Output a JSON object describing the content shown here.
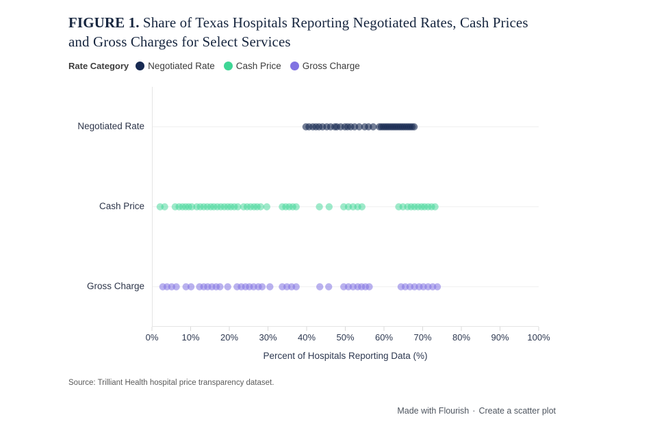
{
  "title": {
    "label": "FIGURE 1.",
    "text": " Share of Texas Hospitals Reporting Negotiated Rates, Cash Prices and Gross Charges for Select Services"
  },
  "legend": {
    "title": "Rate Category",
    "items": [
      {
        "label": "Negotiated Rate",
        "color": "#172a52"
      },
      {
        "label": "Cash Price",
        "color": "#3ed695"
      },
      {
        "label": "Gross Charge",
        "color": "#8173e2"
      }
    ]
  },
  "chart_data": {
    "type": "scatter",
    "orientation": "horizontal-strip",
    "title": "Share of Texas Hospitals Reporting Negotiated Rates, Cash Prices and Gross Charges for Select Services",
    "xlabel": "Percent of Hospitals Reporting Data (%)",
    "xlim": [
      0,
      100
    ],
    "x_ticks": [
      "0%",
      "10%",
      "20%",
      "30%",
      "40%",
      "50%",
      "60%",
      "70%",
      "80%",
      "90%",
      "100%"
    ],
    "grid": "horizontal-row-lines",
    "legend_position": "top",
    "categories": [
      "Negotiated Rate",
      "Cash Price",
      "Gross Charge"
    ],
    "series": [
      {
        "name": "Negotiated Rate",
        "color": "#172a52",
        "opacity": 0.6,
        "values": [
          39.8,
          40.6,
          41.6,
          42.4,
          43.2,
          44.1,
          45.2,
          46.2,
          47.3,
          47.8,
          48.8,
          49.9,
          50.6,
          51.4,
          52.4,
          53.6,
          55.0,
          56.0,
          57.2,
          58.8,
          59.3,
          59.8,
          60.3,
          60.8,
          61.3,
          61.8,
          62.3,
          62.8,
          63.3,
          63.8,
          64.3,
          64.8,
          65.3,
          65.8,
          66.3,
          66.8,
          67.3,
          67.8
        ]
      },
      {
        "name": "Cash Price",
        "color": "#3ed695",
        "opacity": 0.5,
        "values": [
          2.1,
          3.3,
          6.0,
          7.0,
          7.9,
          8.7,
          9.5,
          10.3,
          11.6,
          12.5,
          13.4,
          14.3,
          15.2,
          16.0,
          16.9,
          17.8,
          18.7,
          19.6,
          20.4,
          21.3,
          22.2,
          23.7,
          24.6,
          25.5,
          26.4,
          27.2,
          28.1,
          29.7,
          33.7,
          34.6,
          35.5,
          36.4,
          37.3,
          43.3,
          45.8,
          49.6,
          50.8,
          52.0,
          53.2,
          54.3,
          63.8,
          64.9,
          66.1,
          67.0,
          67.9,
          68.8,
          69.7,
          70.5,
          71.4,
          72.3,
          73.2
        ]
      },
      {
        "name": "Gross Charge",
        "color": "#8173e2",
        "opacity": 0.55,
        "values": [
          2.8,
          3.9,
          5.1,
          6.3,
          8.8,
          10.1,
          12.3,
          13.4,
          14.4,
          15.5,
          16.6,
          17.6,
          19.6,
          22.0,
          23.1,
          24.2,
          25.2,
          26.3,
          27.5,
          28.5,
          30.5,
          33.7,
          34.9,
          36.1,
          37.3,
          43.4,
          45.7,
          49.6,
          50.8,
          52.0,
          53.2,
          54.2,
          55.2,
          56.2,
          64.4,
          65.5,
          66.7,
          67.9,
          69.1,
          70.2,
          71.4,
          72.6,
          73.8
        ]
      }
    ]
  },
  "source": "Source: Trilliant Health hospital price transparency dataset.",
  "footer": {
    "made_with": "Made with Flourish",
    "separator": "·",
    "cta": "Create a scatter plot"
  }
}
